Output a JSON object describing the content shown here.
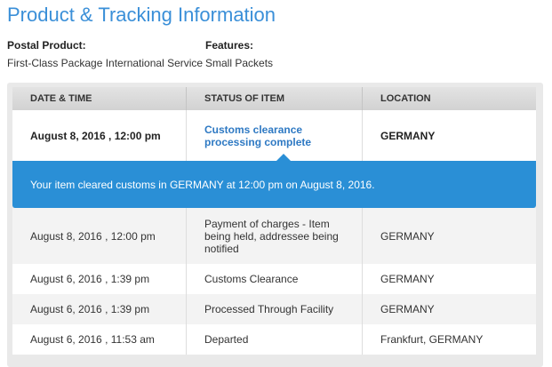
{
  "header": {
    "title": "Product & Tracking Information"
  },
  "product": {
    "postal_product_label": "Postal Product:",
    "postal_product": "First-Class Package International Service",
    "features_label": "Features:",
    "features": "Small Packets"
  },
  "table": {
    "columns": [
      "DATE & TIME",
      "STATUS OF ITEM",
      "LOCATION"
    ],
    "latest": [
      "August 8, 2016 , 12:00 pm",
      "Customs clearance processing complete",
      "GERMANY"
    ],
    "banner": "Your item cleared customs in GERMANY at 12:00 pm on August 8, 2016.",
    "rows": [
      [
        "August 8, 2016 , 12:00 pm",
        "Payment of charges - Item being held, addressee being notified",
        "GERMANY"
      ],
      [
        "August 6, 2016 , 1:39 pm",
        "Customs Clearance",
        "GERMANY"
      ],
      [
        "August 6, 2016 , 1:39 pm",
        "Processed Through Facility",
        "GERMANY"
      ],
      [
        "August 6, 2016 , 11:53 am",
        "Departed",
        "Frankfurt, GERMANY"
      ]
    ]
  }
}
